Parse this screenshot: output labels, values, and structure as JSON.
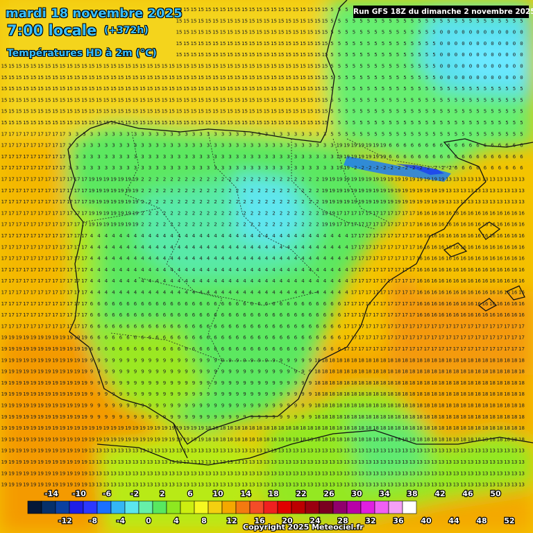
{
  "header": {
    "date_line": "mardi 18 novembre 2025",
    "time_line": "7:00 locale",
    "offset": "(+372h)",
    "parameter": "Températures HD à 2m (°C)"
  },
  "run_info": "Run GFS 18Z du dimanche 2 novembre 2025",
  "copyright": "Copyright 2025 Meteociel.fr",
  "legend": {
    "upper_labels": [
      "-14",
      "-10",
      "-6",
      "-2",
      "2",
      "6",
      "10",
      "14",
      "18",
      "22",
      "26",
      "30",
      "34",
      "38",
      "42",
      "46",
      "50"
    ],
    "lower_labels": [
      "-12",
      "-8",
      "-4",
      "0",
      "4",
      "8",
      "12",
      "16",
      "20",
      "24",
      "28",
      "32",
      "36",
      "40",
      "44",
      "48",
      "52"
    ],
    "colors": [
      "#041838",
      "#06306a",
      "#0a40a0",
      "#1e1ee6",
      "#2c38ff",
      "#1a70ff",
      "#34b6f4",
      "#5be6ee",
      "#66f0a8",
      "#58e860",
      "#8ee820",
      "#cdee10",
      "#f6f820",
      "#f4d010",
      "#f4a800",
      "#f47a10",
      "#f44c28",
      "#f02020",
      "#e00000",
      "#bc0000",
      "#9a0010",
      "#7a0020",
      "#90006c",
      "#b800a8",
      "#e020e0",
      "#f060f4",
      "#f4a0f4",
      "#ffffff"
    ]
  },
  "map": {
    "region": "Spain / Western Mediterranean",
    "value_zones": [
      {
        "name": "atlantic-north",
        "value": 15
      },
      {
        "name": "atlantic-west",
        "value": 17
      },
      {
        "name": "atlantic-south",
        "value": 19
      },
      {
        "name": "gulf-of-lion",
        "value": 13
      },
      {
        "name": "mediterranean",
        "value": 17
      },
      {
        "name": "balearic",
        "value": 16
      },
      {
        "name": "med-south",
        "value": 18
      },
      {
        "name": "africa-coast",
        "value": 18
      },
      {
        "name": "france-west",
        "value": 5
      },
      {
        "name": "france-south",
        "value": 6
      },
      {
        "name": "alps",
        "value": 0
      },
      {
        "name": "iberia-north",
        "value": 3
      },
      {
        "name": "meseta-north",
        "value": 2
      },
      {
        "name": "meseta-central",
        "value": 4
      },
      {
        "name": "meseta-south",
        "value": 6
      },
      {
        "name": "andalusia",
        "value": 9
      },
      {
        "name": "pyrenees",
        "value": -2
      },
      {
        "name": "morocco",
        "value": 13
      }
    ]
  }
}
